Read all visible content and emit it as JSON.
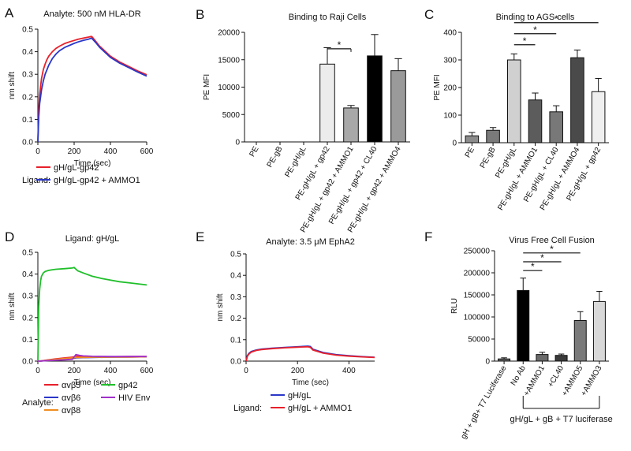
{
  "chart_data": [
    {
      "panel": "A",
      "type": "line",
      "title": "Analyte: 500 nM HLA-DR",
      "xlabel": "Time (sec)",
      "ylabel": "nm shift",
      "xlim": [
        0,
        600
      ],
      "ylim": [
        0,
        0.5
      ],
      "xticks": [
        0,
        200,
        400,
        600
      ],
      "yticks": [
        0,
        0.1,
        0.2,
        0.3,
        0.4,
        0.5
      ],
      "xtick_labels": [
        "0",
        "200",
        "400",
        "600"
      ],
      "ytick_labels": [
        "0.0",
        "0.1",
        "0.2",
        "0.3",
        "0.4",
        "0.5"
      ],
      "legend_title": "Ligand:",
      "series": [
        {
          "name": "gH/gL-gp42",
          "color": "#e8202a",
          "x": [
            0,
            5,
            10,
            20,
            30,
            40,
            50,
            60,
            80,
            100,
            120,
            150,
            180,
            200,
            220,
            250,
            280,
            295,
            300,
            320,
            340,
            360,
            400,
            450,
            500,
            550,
            600
          ],
          "y": [
            0,
            0.14,
            0.21,
            0.28,
            0.32,
            0.345,
            0.365,
            0.38,
            0.4,
            0.415,
            0.425,
            0.437,
            0.445,
            0.45,
            0.455,
            0.46,
            0.465,
            0.468,
            0.465,
            0.445,
            0.425,
            0.41,
            0.38,
            0.355,
            0.335,
            0.315,
            0.298
          ]
        },
        {
          "name": "gH/gL-gp42 + AMMO1",
          "color": "#2a37c8",
          "x": [
            0,
            5,
            10,
            20,
            30,
            40,
            50,
            60,
            80,
            100,
            120,
            150,
            180,
            200,
            220,
            250,
            280,
            295,
            300,
            320,
            340,
            360,
            400,
            450,
            500,
            550,
            600
          ],
          "y": [
            0,
            0.11,
            0.17,
            0.23,
            0.27,
            0.3,
            0.32,
            0.34,
            0.37,
            0.39,
            0.405,
            0.42,
            0.43,
            0.437,
            0.443,
            0.45,
            0.456,
            0.46,
            0.457,
            0.44,
            0.42,
            0.405,
            0.375,
            0.35,
            0.33,
            0.31,
            0.292
          ]
        }
      ]
    },
    {
      "panel": "B",
      "type": "bar",
      "title": "Binding to Raji Cells",
      "xlabel": "",
      "ylabel": "PE  MFI",
      "ylim": [
        0,
        20000
      ],
      "yticks": [
        0,
        5000,
        10000,
        15000,
        20000
      ],
      "ytick_labels": [
        "0",
        "5000",
        "10000",
        "15000",
        "20000"
      ],
      "categories": [
        "PE",
        "PE-gB",
        "PE-gH/gL",
        "PE-gH/gL + gp42",
        "PE-gH/gL + gp42 + AMMO1",
        "PE-gH/gL + gp42 + CL40",
        "PE-gH/gL + gp42 + AMMO4"
      ],
      "values": [
        0,
        0,
        0,
        14200,
        6200,
        15700,
        13000
      ],
      "errors": [
        0,
        0,
        0,
        3000,
        450,
        3900,
        2200
      ],
      "colors": [
        "#ffffff",
        "#ffffff",
        "#ffffff",
        "#ececec",
        "#a8a8a8",
        "#000000",
        "#9a9a9a"
      ],
      "significance": [
        {
          "from": 3,
          "to": 4,
          "label": "*"
        }
      ]
    },
    {
      "panel": "C",
      "type": "bar",
      "title": "Binding to AGS cells",
      "xlabel": "",
      "ylabel": "PE MFI",
      "ylim": [
        0,
        400
      ],
      "yticks": [
        0,
        100,
        200,
        300,
        400
      ],
      "ytick_labels": [
        "0",
        "100",
        "200",
        "300",
        "400"
      ],
      "categories": [
        "PE",
        "PE-gB",
        "PE-gH/gL",
        "PE-gH/gL + AMMO1",
        "PE-gH/gL + CL40",
        "PE-gH/gL + AMMO4",
        "PE-gH/gL + gp42"
      ],
      "values": [
        25,
        45,
        300,
        155,
        112,
        308,
        185
      ],
      "errors": [
        12,
        10,
        22,
        25,
        22,
        28,
        48
      ],
      "colors": [
        "#8c8c8c",
        "#7a7a7a",
        "#d0d0d0",
        "#5c5c5c",
        "#787878",
        "#4a4a4a",
        "#efefef"
      ],
      "significance": [
        {
          "from": 2,
          "to": 3,
          "label": "*"
        },
        {
          "from": 2,
          "to": 4,
          "label": "*"
        },
        {
          "from": 2,
          "to": 6,
          "label": "*"
        }
      ]
    },
    {
      "panel": "D",
      "type": "line",
      "title": "Ligand: gH/gL",
      "xlabel": "Time (sec)",
      "ylabel": "nm shift",
      "xlim": [
        0,
        600
      ],
      "ylim": [
        0,
        0.5
      ],
      "xticks": [
        0,
        200,
        400,
        600
      ],
      "yticks": [
        0,
        0.1,
        0.2,
        0.3,
        0.4,
        0.5
      ],
      "xtick_labels": [
        "0",
        "200",
        "400",
        "600"
      ],
      "ytick_labels": [
        "0.0",
        "0.1",
        "0.2",
        "0.3",
        "0.4",
        "0.5"
      ],
      "legend_title": "Analyte:",
      "series": [
        {
          "name": "αvβ5",
          "color": "#e8202a",
          "x": [
            0,
            10,
            50,
            100,
            150,
            190,
            200,
            210,
            250,
            300,
            400,
            500,
            600
          ],
          "y": [
            0,
            0.0,
            0.005,
            0.01,
            0.015,
            0.018,
            0.02,
            0.022,
            0.02,
            0.02,
            0.02,
            0.021,
            0.021
          ]
        },
        {
          "name": "αvβ6",
          "color": "#2a37c8",
          "x": [
            0,
            10,
            50,
            100,
            150,
            190,
            200,
            210,
            250,
            300,
            400,
            500,
            600
          ],
          "y": [
            0,
            0.0,
            0.003,
            0.006,
            0.01,
            0.012,
            0.013,
            0.015,
            0.016,
            0.017,
            0.018,
            0.019,
            0.02
          ]
        },
        {
          "name": "αvβ8",
          "color": "#f08c1e",
          "x": [
            0,
            10,
            50,
            100,
            150,
            190,
            200,
            210,
            250,
            300,
            400,
            500,
            600
          ],
          "y": [
            0,
            0.0,
            0.004,
            0.008,
            0.012,
            0.015,
            0.016,
            0.017,
            0.017,
            0.018,
            0.019,
            0.019,
            0.02
          ]
        },
        {
          "name": "gp42",
          "color": "#1fbf2a",
          "x": [
            0,
            5,
            10,
            15,
            20,
            30,
            40,
            60,
            80,
            100,
            150,
            190,
            200,
            220,
            250,
            300,
            350,
            400,
            450,
            500,
            550,
            600
          ],
          "y": [
            0,
            0.25,
            0.33,
            0.37,
            0.39,
            0.405,
            0.412,
            0.417,
            0.42,
            0.422,
            0.425,
            0.428,
            0.43,
            0.415,
            0.405,
            0.39,
            0.38,
            0.372,
            0.365,
            0.36,
            0.355,
            0.35
          ]
        },
        {
          "name": "HIV Env",
          "color": "#a030c8",
          "x": [
            0,
            10,
            50,
            100,
            150,
            190,
            200,
            210,
            230,
            250,
            300,
            400,
            500,
            600
          ],
          "y": [
            0,
            0.0,
            0.002,
            0.004,
            0.006,
            0.008,
            0.02,
            0.03,
            0.026,
            0.024,
            0.022,
            0.021,
            0.021,
            0.021
          ]
        }
      ]
    },
    {
      "panel": "E",
      "type": "line",
      "title": "Analyte: 3.5 μM EphA2",
      "xlabel": "Time (sec)",
      "ylabel": "nm shift",
      "xlim": [
        0,
        500
      ],
      "ylim": [
        0,
        0.5
      ],
      "xticks": [
        0,
        200,
        400
      ],
      "yticks": [
        0,
        0.1,
        0.2,
        0.3,
        0.4,
        0.5
      ],
      "xtick_labels": [
        "0",
        "200",
        "400"
      ],
      "ytick_labels": [
        "0.0",
        "0.1",
        "0.2",
        "0.3",
        "0.4",
        "0.5"
      ],
      "legend_title": "Ligand:",
      "series": [
        {
          "name": "gH/gL",
          "color": "#2a37c8",
          "x": [
            0,
            5,
            10,
            20,
            40,
            60,
            100,
            150,
            200,
            240,
            250,
            260,
            300,
            350,
            400,
            450,
            500
          ],
          "y": [
            0,
            0.025,
            0.035,
            0.045,
            0.052,
            0.056,
            0.06,
            0.064,
            0.067,
            0.07,
            0.068,
            0.055,
            0.04,
            0.03,
            0.025,
            0.021,
            0.018
          ]
        },
        {
          "name": "gH/gL + AMMO1",
          "color": "#e8202a",
          "x": [
            0,
            5,
            10,
            20,
            40,
            60,
            100,
            150,
            200,
            240,
            250,
            260,
            300,
            350,
            400,
            450,
            500
          ],
          "y": [
            0,
            0.022,
            0.032,
            0.042,
            0.05,
            0.054,
            0.058,
            0.062,
            0.065,
            0.067,
            0.064,
            0.052,
            0.037,
            0.028,
            0.023,
            0.02,
            0.017
          ]
        }
      ]
    },
    {
      "panel": "F",
      "type": "bar",
      "title": "Virus Free Cell  Fusion",
      "xlabel": "",
      "ylabel": "RLU",
      "ylim": [
        0,
        250000
      ],
      "yticks": [
        0,
        50000,
        100000,
        150000,
        200000,
        250000
      ],
      "ytick_labels": [
        "0",
        "50000",
        "100000",
        "150000",
        "200000",
        "250000"
      ],
      "categories": [
        "gH + gB+ T7 Luciferase",
        "No Ab",
        "+AMMO1",
        "+CL40",
        "+AMMO5",
        "+AMMO3"
      ],
      "values": [
        5000,
        160000,
        15000,
        13000,
        92000,
        135000
      ],
      "errors": [
        2500,
        28000,
        5000,
        3000,
        20000,
        23000
      ],
      "colors": [
        "#666666",
        "#000000",
        "#6a6a6a",
        "#3a3a3a",
        "#7a7a7a",
        "#d8d8d8"
      ],
      "significance": [
        {
          "from": 1,
          "to": 2,
          "label": "*"
        },
        {
          "from": 1,
          "to": 3,
          "label": "*"
        },
        {
          "from": 1,
          "to": 4,
          "label": "*"
        }
      ],
      "bracket_label": "gH/gL + gB  + T7 luciferase",
      "bracket_range": [
        1,
        5
      ]
    }
  ]
}
